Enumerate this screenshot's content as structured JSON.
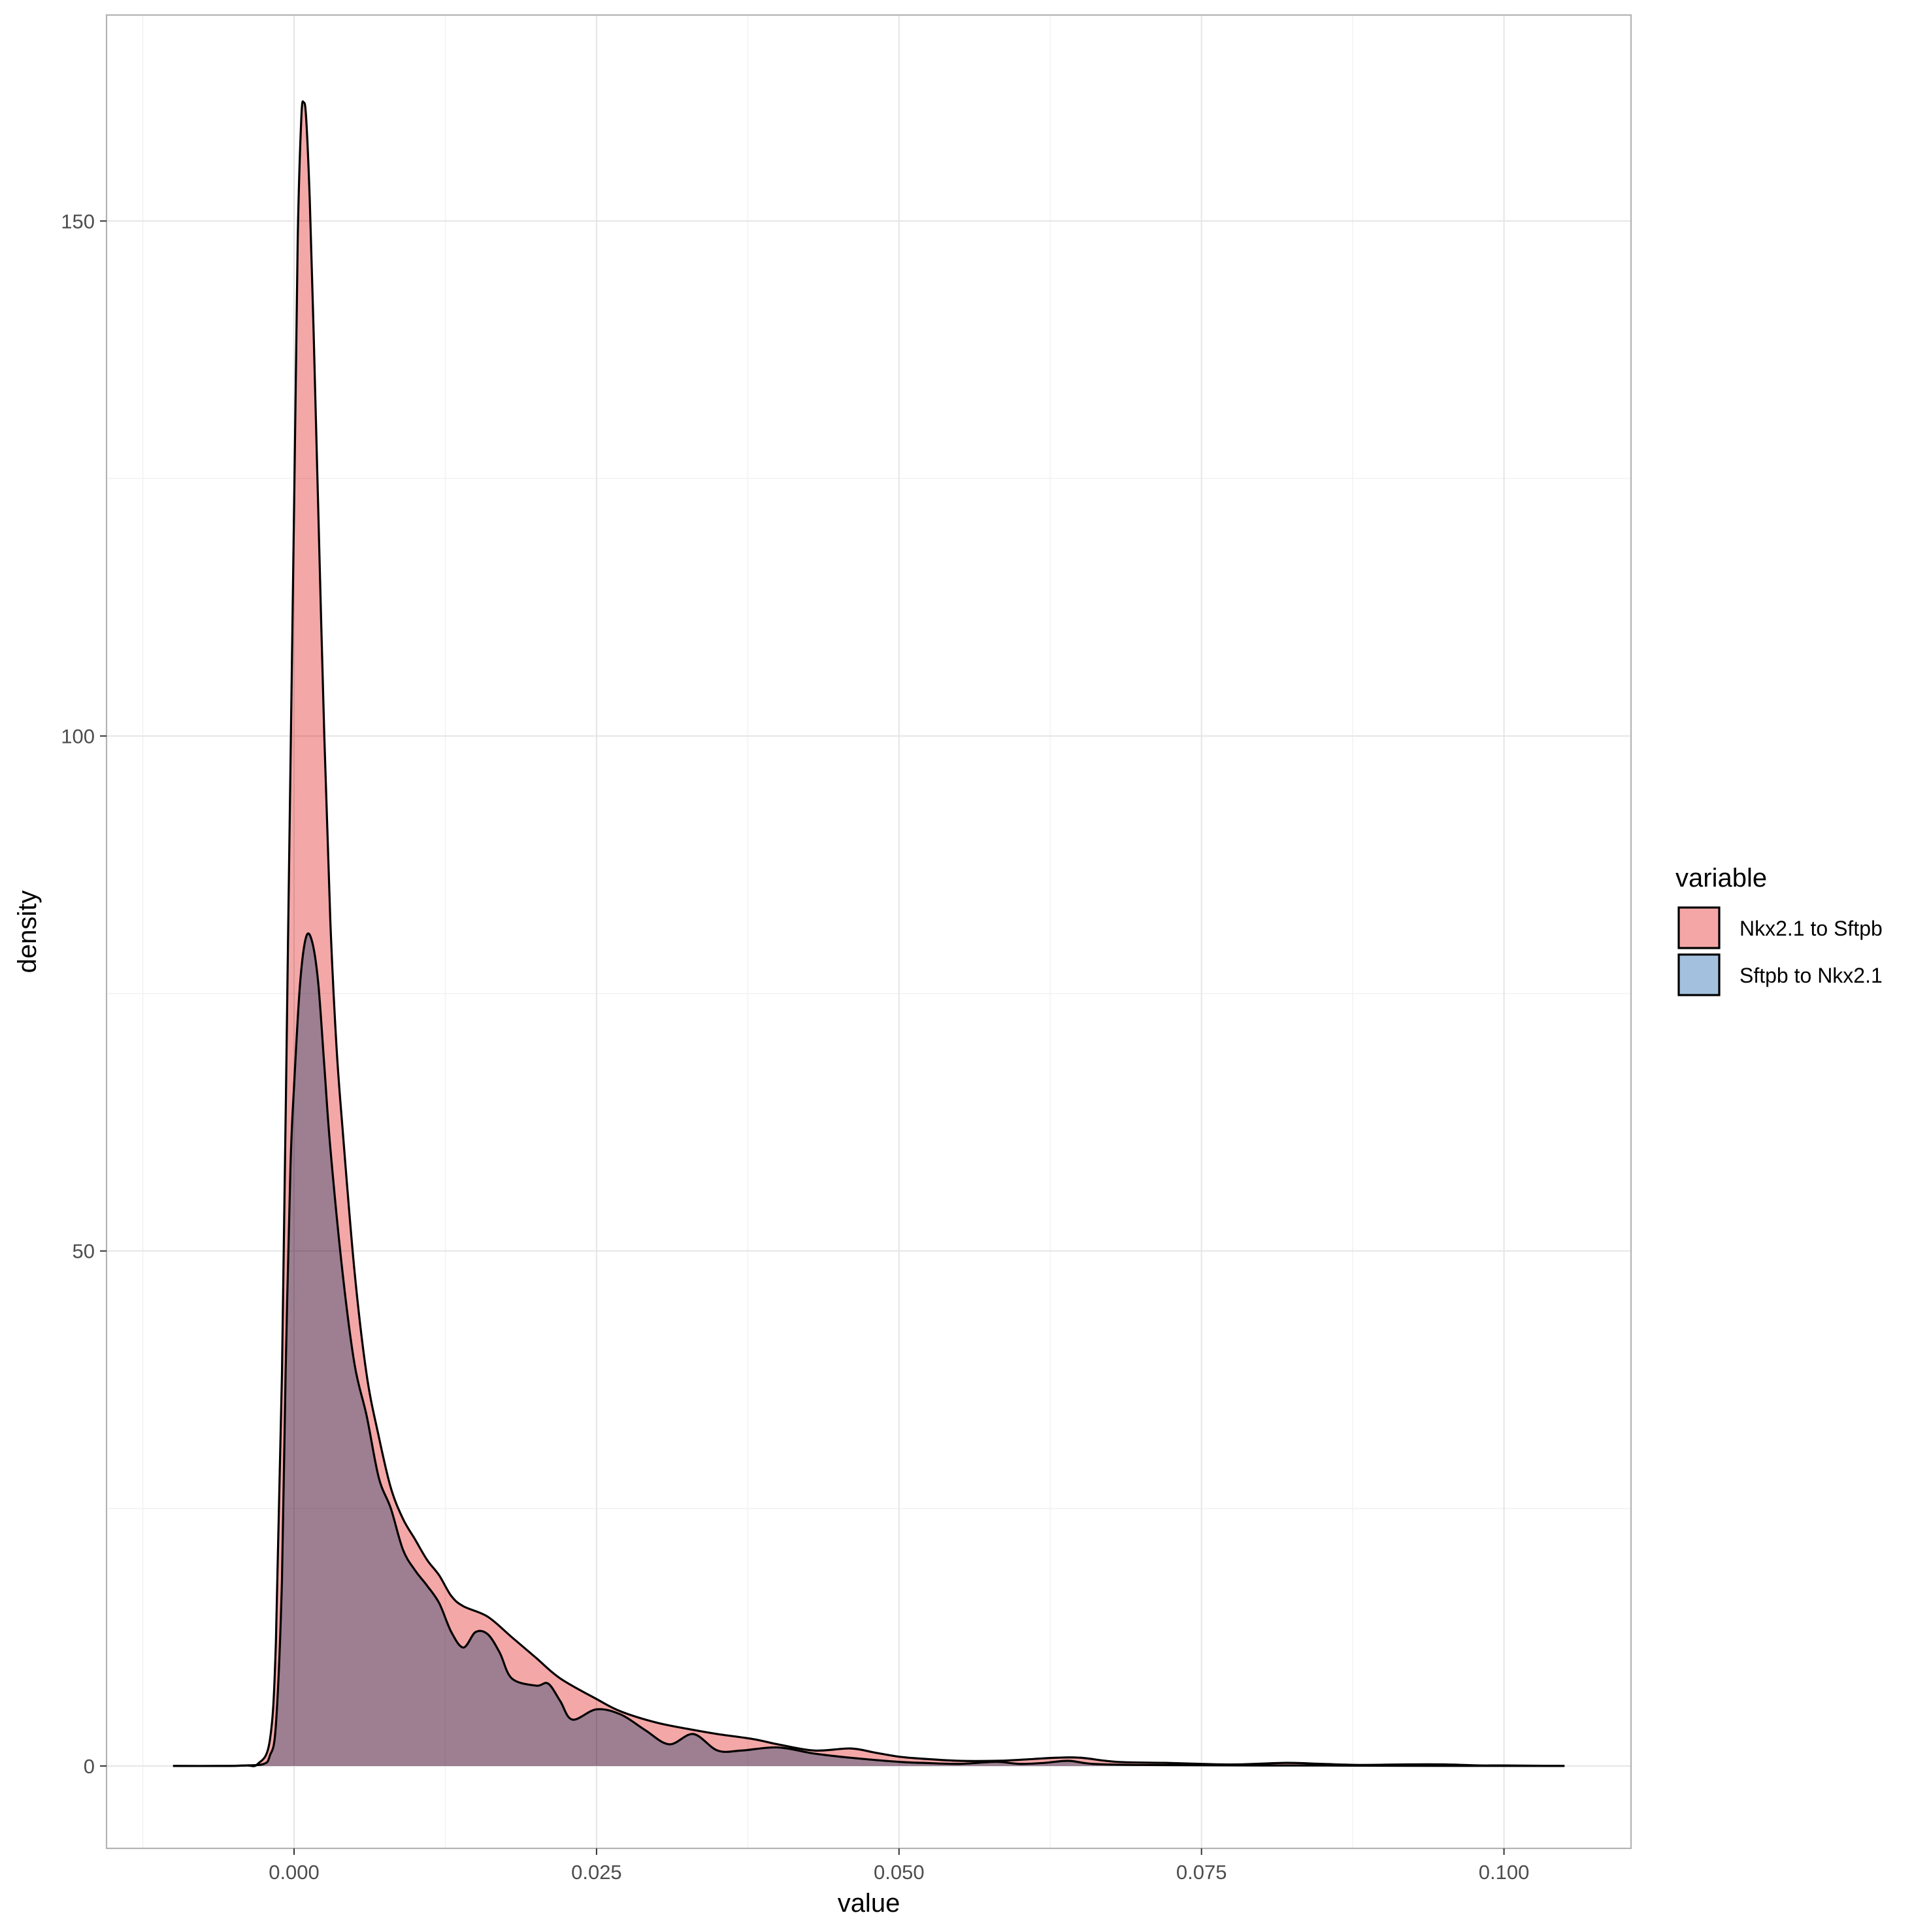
{
  "chart_data": {
    "type": "area",
    "xlabel": "value",
    "ylabel": "density",
    "xlim": [
      -0.0155,
      0.1105
    ],
    "ylim": [
      -8,
      170
    ],
    "x_ticks": [
      0.0,
      0.025,
      0.05,
      0.075,
      0.1
    ],
    "x_tick_labels": [
      "0.000",
      "0.025",
      "0.050",
      "0.075",
      "0.100"
    ],
    "y_ticks": [
      0,
      50,
      100,
      150
    ],
    "y_tick_labels": [
      "0",
      "50",
      "100",
      "150"
    ],
    "grid": true,
    "legend": {
      "title": "variable",
      "position": "right"
    },
    "series": [
      {
        "name": "Nkx2.1 to Sftpb",
        "fill": "#f4a6a6",
        "points": [
          [
            -0.01,
            0
          ],
          [
            -0.006,
            0
          ],
          [
            -0.004,
            0.05
          ],
          [
            -0.003,
            0.2
          ],
          [
            -0.002,
            2.5
          ],
          [
            -0.0015,
            12
          ],
          [
            -0.001,
            38
          ],
          [
            -0.0005,
            80
          ],
          [
            0.0,
            122
          ],
          [
            0.0003,
            148
          ],
          [
            0.0006,
            160
          ],
          [
            0.0008,
            161.5
          ],
          [
            0.001,
            160
          ],
          [
            0.0013,
            152
          ],
          [
            0.0016,
            140
          ],
          [
            0.002,
            122
          ],
          [
            0.0025,
            100
          ],
          [
            0.003,
            82
          ],
          [
            0.0035,
            70
          ],
          [
            0.004,
            62
          ],
          [
            0.005,
            48
          ],
          [
            0.006,
            38
          ],
          [
            0.007,
            32
          ],
          [
            0.008,
            27
          ],
          [
            0.009,
            24
          ],
          [
            0.01,
            22
          ],
          [
            0.011,
            20
          ],
          [
            0.012,
            18.5
          ],
          [
            0.013,
            16.5
          ],
          [
            0.014,
            15.5
          ],
          [
            0.016,
            14.5
          ],
          [
            0.018,
            12.5
          ],
          [
            0.02,
            10.5
          ],
          [
            0.022,
            8.5
          ],
          [
            0.025,
            6.5
          ],
          [
            0.027,
            5.3
          ],
          [
            0.03,
            4.2
          ],
          [
            0.033,
            3.5
          ],
          [
            0.035,
            3.1
          ],
          [
            0.038,
            2.6
          ],
          [
            0.04,
            2.1
          ],
          [
            0.043,
            1.5
          ],
          [
            0.046,
            1.7
          ],
          [
            0.048,
            1.3
          ],
          [
            0.05,
            0.9
          ],
          [
            0.052,
            0.7
          ],
          [
            0.055,
            0.5
          ],
          [
            0.058,
            0.5
          ],
          [
            0.06,
            0.6
          ],
          [
            0.063,
            0.8
          ],
          [
            0.065,
            0.8
          ],
          [
            0.068,
            0.4
          ],
          [
            0.072,
            0.3
          ],
          [
            0.075,
            0.2
          ],
          [
            0.078,
            0.15
          ],
          [
            0.082,
            0.3
          ],
          [
            0.085,
            0.2
          ],
          [
            0.088,
            0.1
          ],
          [
            0.092,
            0.15
          ],
          [
            0.095,
            0.15
          ],
          [
            0.098,
            0.05
          ],
          [
            0.1,
            0.05
          ],
          [
            0.105,
            0
          ]
        ]
      },
      {
        "name": "Sftpb to Nkx2.1",
        "fill": "#a3c1de",
        "points": [
          [
            -0.01,
            0
          ],
          [
            -0.006,
            0
          ],
          [
            -0.004,
            0.05
          ],
          [
            -0.0025,
            0.2
          ],
          [
            -0.002,
            1
          ],
          [
            -0.0015,
            4
          ],
          [
            -0.001,
            18
          ],
          [
            -0.0007,
            38
          ],
          [
            -0.0003,
            58
          ],
          [
            0.0,
            66
          ],
          [
            0.0005,
            76
          ],
          [
            0.001,
            80.5
          ],
          [
            0.0015,
            80
          ],
          [
            0.002,
            76
          ],
          [
            0.0025,
            68
          ],
          [
            0.003,
            60
          ],
          [
            0.004,
            48
          ],
          [
            0.005,
            39
          ],
          [
            0.006,
            34
          ],
          [
            0.007,
            28
          ],
          [
            0.008,
            25
          ],
          [
            0.009,
            21
          ],
          [
            0.01,
            19
          ],
          [
            0.011,
            17.5
          ],
          [
            0.012,
            15.8
          ],
          [
            0.013,
            13
          ],
          [
            0.014,
            11.5
          ],
          [
            0.015,
            13
          ],
          [
            0.016,
            12.8
          ],
          [
            0.017,
            11
          ],
          [
            0.018,
            8.5
          ],
          [
            0.02,
            7.8
          ],
          [
            0.021,
            8
          ],
          [
            0.022,
            6.3
          ],
          [
            0.023,
            4.5
          ],
          [
            0.025,
            5.5
          ],
          [
            0.027,
            5
          ],
          [
            0.029,
            3.5
          ],
          [
            0.031,
            2.1
          ],
          [
            0.033,
            3.1
          ],
          [
            0.035,
            1.5
          ],
          [
            0.037,
            1.5
          ],
          [
            0.04,
            1.8
          ],
          [
            0.043,
            1.2
          ],
          [
            0.046,
            0.8
          ],
          [
            0.05,
            0.4
          ],
          [
            0.052,
            0.3
          ],
          [
            0.055,
            0.2
          ],
          [
            0.058,
            0.4
          ],
          [
            0.06,
            0.2
          ],
          [
            0.062,
            0.3
          ],
          [
            0.064,
            0.5
          ],
          [
            0.066,
            0.2
          ],
          [
            0.07,
            0.1
          ],
          [
            0.08,
            0.05
          ],
          [
            0.085,
            0.05
          ],
          [
            0.09,
            0.02
          ],
          [
            0.105,
            0
          ]
        ]
      }
    ]
  }
}
